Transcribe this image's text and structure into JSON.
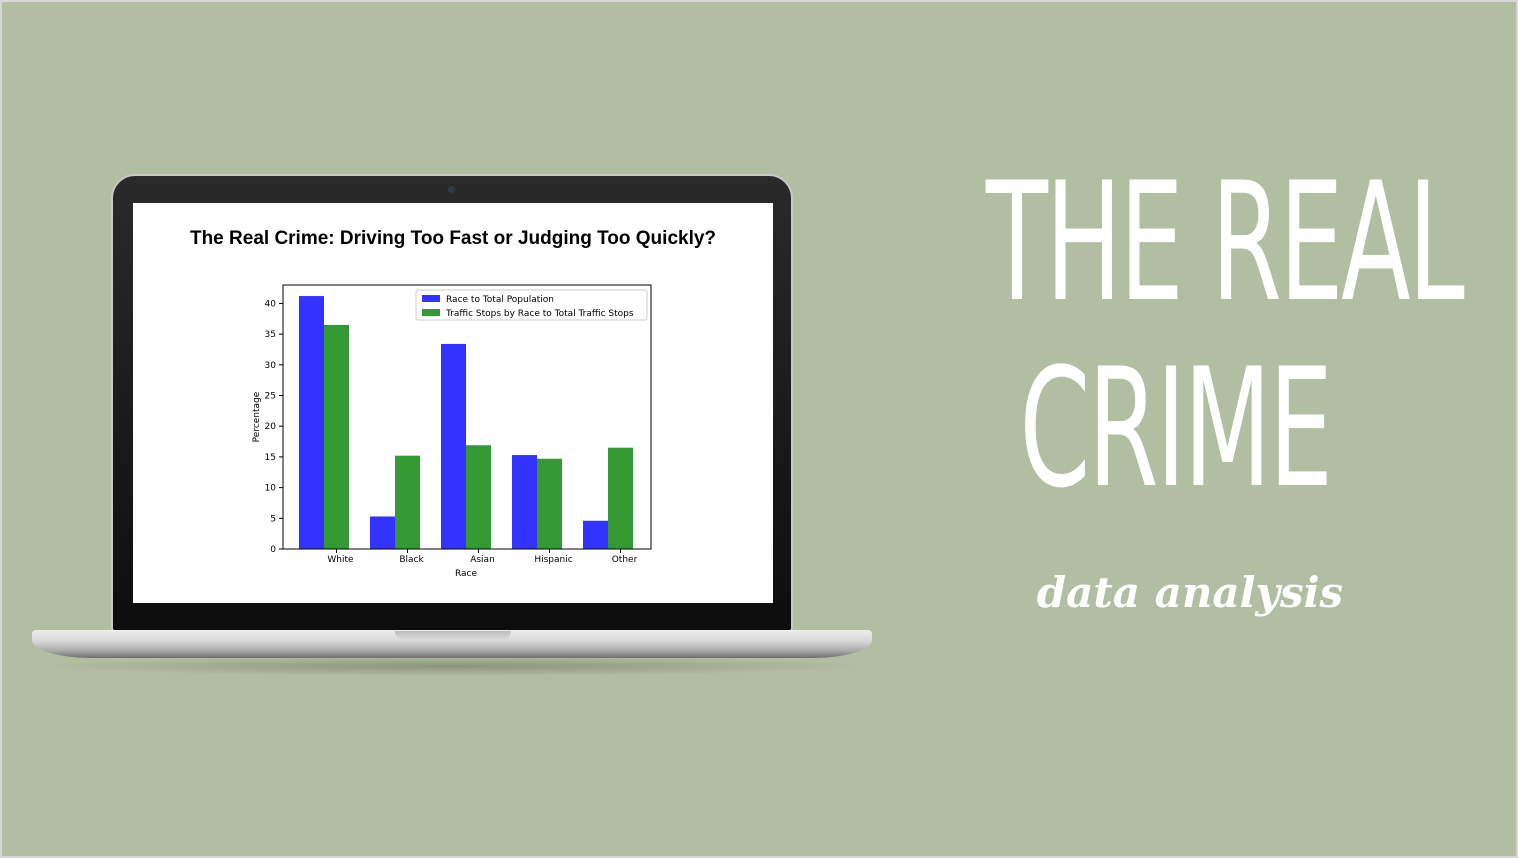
{
  "slide": {
    "title_line1": "THE REAL",
    "title_line2": "CRIME",
    "subtitle": "data analysis"
  },
  "colors": {
    "background": "#b2bea1",
    "series_blue": "#3333ff",
    "series_green": "#339933"
  },
  "chart_data": {
    "type": "bar",
    "title": "The Real Crime: Driving Too Fast or Judging Too Quickly?",
    "xlabel": "Race",
    "ylabel": "Percentage",
    "categories": [
      "White",
      "Black",
      "Asian",
      "Hispanic",
      "Other"
    ],
    "yticks": [
      "0",
      "5",
      "10",
      "15",
      "20",
      "25",
      "30",
      "35",
      "40"
    ],
    "ylim": [
      0,
      43
    ],
    "legend_position": "top-right",
    "grid": false,
    "series": [
      {
        "name": "Race to Total Population",
        "color": "#3333ff",
        "values": [
          41.2,
          5.3,
          33.4,
          15.3,
          4.6
        ]
      },
      {
        "name": "Traffic Stops by Race to Total Traffic Stops",
        "color": "#339933",
        "values": [
          36.5,
          15.2,
          16.9,
          14.7,
          16.5
        ]
      }
    ]
  }
}
